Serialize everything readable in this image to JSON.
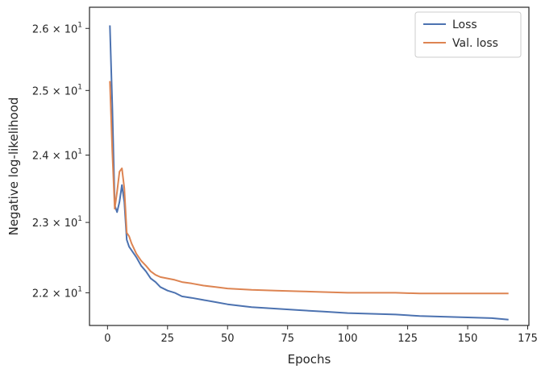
{
  "chart_data": {
    "type": "line",
    "xlabel": "Epochs",
    "ylabel": "Negative log-likelihood",
    "xlim": [
      -7.5,
      175.5
    ],
    "ylim": [
      21.55,
      26.35
    ],
    "yscale": "log",
    "xticks": [
      0,
      25,
      50,
      75,
      100,
      125,
      150,
      175
    ],
    "xtick_labels": [
      "0",
      "25",
      "50",
      "75",
      "100",
      "125",
      "150",
      "175"
    ],
    "yticks": [
      22,
      23,
      24,
      25,
      26
    ],
    "ytick_labels": [
      {
        "base": "2.2 × 10",
        "exp": "1"
      },
      {
        "base": "2.3 × 10",
        "exp": "1"
      },
      {
        "base": "2.4 × 10",
        "exp": "1"
      },
      {
        "base": "2.5 × 10",
        "exp": "1"
      },
      {
        "base": "2.6 × 10",
        "exp": "1"
      }
    ],
    "grid": false,
    "legend_position": "top-right",
    "series": [
      {
        "name": "Loss",
        "color": "#4c72b0",
        "x": [
          1,
          2,
          3,
          4,
          5,
          6,
          7,
          8,
          9,
          10,
          12,
          14,
          16,
          18,
          20,
          22,
          25,
          28,
          31,
          35,
          40,
          45,
          50,
          60,
          70,
          80,
          90,
          100,
          110,
          120,
          130,
          140,
          150,
          160,
          167
        ],
        "y": [
          26.05,
          24.75,
          23.25,
          23.15,
          23.3,
          23.55,
          23.3,
          22.75,
          22.65,
          22.6,
          22.5,
          22.38,
          22.3,
          22.2,
          22.15,
          22.08,
          22.03,
          22.0,
          21.95,
          21.93,
          21.9,
          21.87,
          21.84,
          21.8,
          21.78,
          21.76,
          21.74,
          21.72,
          21.71,
          21.7,
          21.68,
          21.67,
          21.66,
          21.65,
          21.63
        ]
      },
      {
        "name": "Val. loss",
        "color": "#dd8452",
        "x": [
          1,
          2,
          3,
          4,
          5,
          6,
          7,
          8,
          9,
          10,
          12,
          14,
          16,
          18,
          20,
          22,
          25,
          28,
          31,
          35,
          40,
          45,
          50,
          60,
          70,
          80,
          90,
          100,
          110,
          120,
          130,
          140,
          150,
          160,
          167
        ],
        "y": [
          25.15,
          24.05,
          23.2,
          23.45,
          23.75,
          23.8,
          23.5,
          22.85,
          22.8,
          22.7,
          22.55,
          22.45,
          22.38,
          22.3,
          22.25,
          22.22,
          22.2,
          22.18,
          22.15,
          22.13,
          22.1,
          22.08,
          22.06,
          22.04,
          22.03,
          22.02,
          22.01,
          22.0,
          22.0,
          22.0,
          21.99,
          21.99,
          21.99,
          21.99,
          21.99
        ]
      }
    ]
  }
}
